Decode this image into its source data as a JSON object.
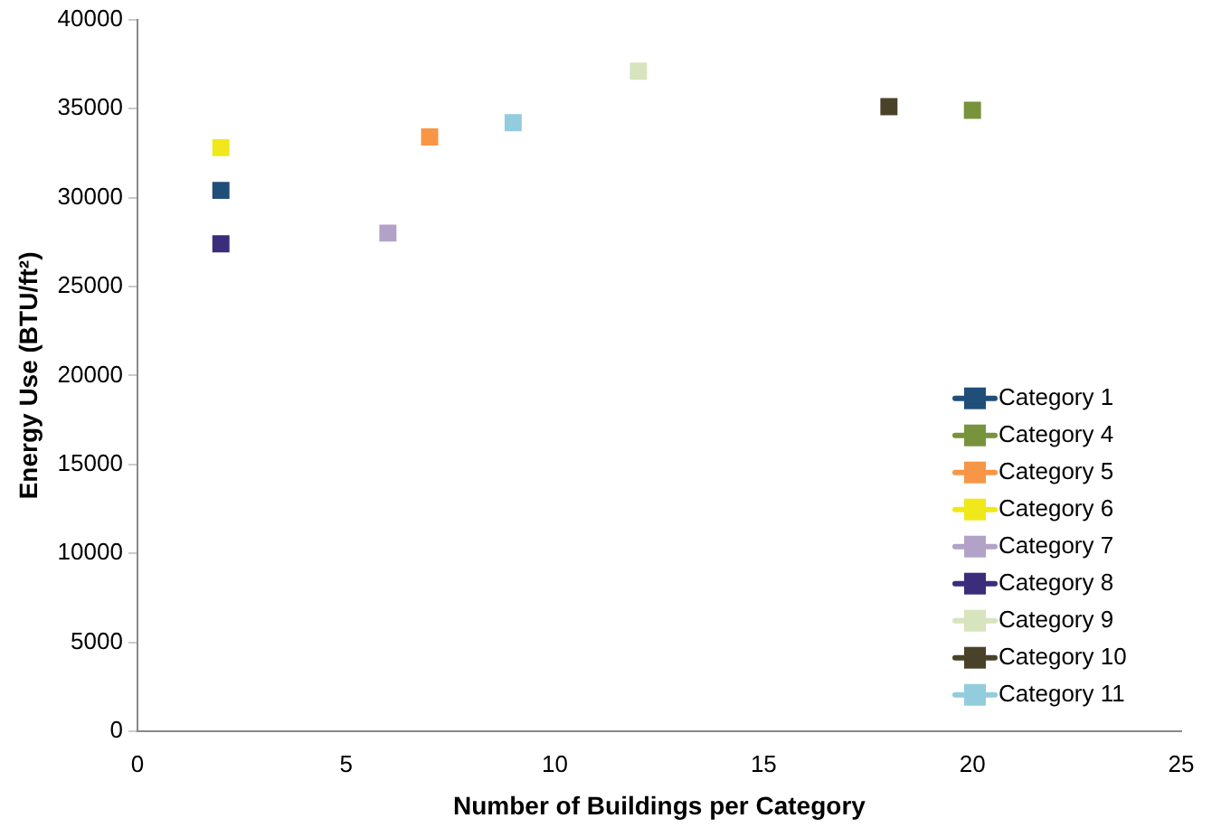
{
  "chart_data": {
    "type": "scatter",
    "xlabel": "Number of Buildings per Category",
    "ylabel": "Energy Use (BTU/ft²)",
    "xlim": [
      0,
      25
    ],
    "xticks": [
      0,
      5,
      10,
      15,
      20,
      25
    ],
    "ylim": [
      0,
      40000
    ],
    "yticks": [
      0,
      5000,
      10000,
      15000,
      20000,
      25000,
      30000,
      35000,
      40000
    ],
    "grid": false,
    "legend": "bottom right",
    "marker": "square",
    "series": [
      {
        "name": "Category 1",
        "color": "#1f4e79",
        "x": [
          2
        ],
        "values": [
          30400
        ]
      },
      {
        "name": "Category 4",
        "color": "#77933c",
        "x": [
          20
        ],
        "values": [
          34900
        ]
      },
      {
        "name": "Category 5",
        "color": "#f79646",
        "x": [
          7
        ],
        "values": [
          33400
        ]
      },
      {
        "name": "Category 6",
        "color": "#f0e81a",
        "x": [
          2
        ],
        "values": [
          32800
        ]
      },
      {
        "name": "Category 7",
        "color": "#b3a2c7",
        "x": [
          6
        ],
        "values": [
          28000
        ]
      },
      {
        "name": "Category 8",
        "color": "#3b2d7a",
        "x": [
          2
        ],
        "values": [
          27400
        ]
      },
      {
        "name": "Category 9",
        "color": "#d7e4bd",
        "x": [
          12
        ],
        "values": [
          37100
        ]
      },
      {
        "name": "Category 10",
        "color": "#4a4228",
        "x": [
          18
        ],
        "values": [
          35100
        ]
      },
      {
        "name": "Category 11",
        "color": "#93cddd",
        "x": [
          9
        ],
        "values": [
          34200
        ]
      }
    ]
  }
}
